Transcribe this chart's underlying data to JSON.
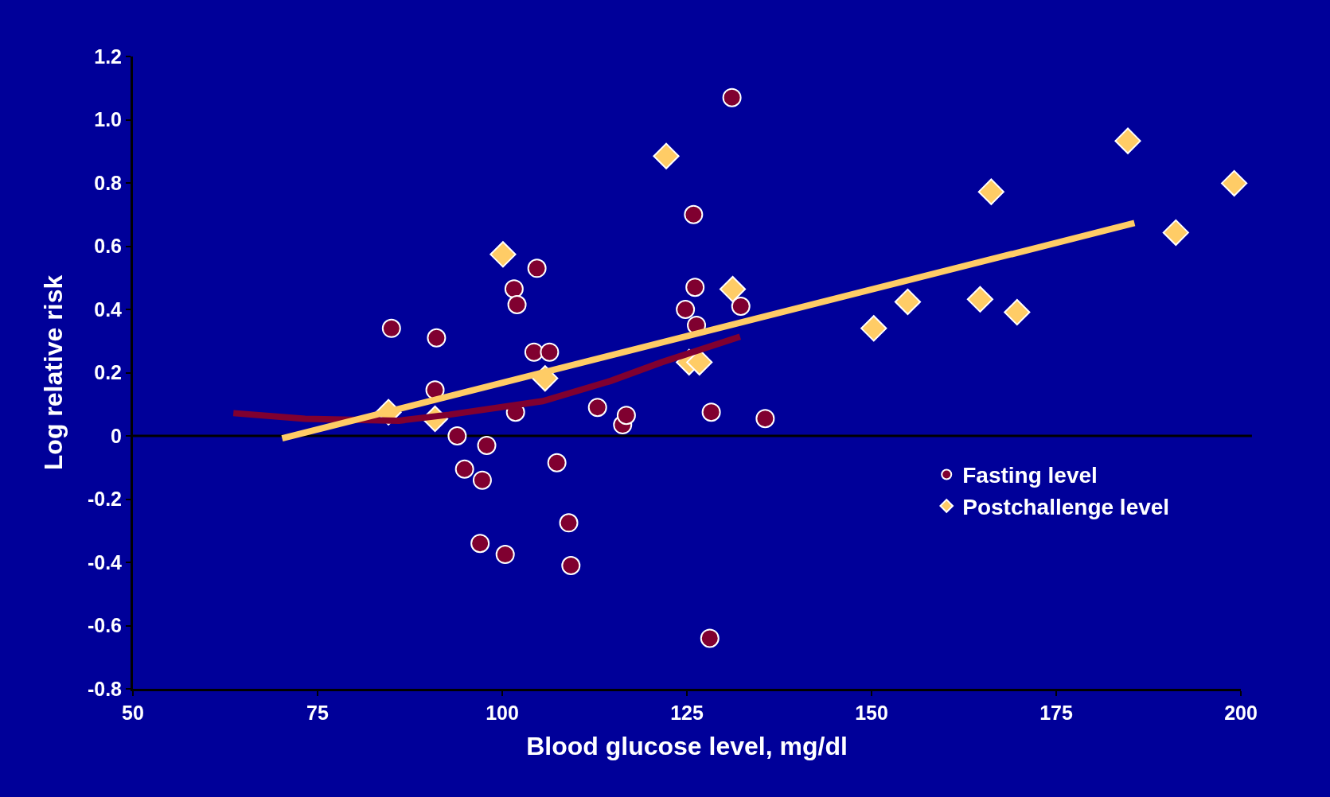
{
  "chart_data": {
    "type": "scatter",
    "xlabel": "Blood glucose level, mg/dl",
    "ylabel": "Log relative risk",
    "xlim": [
      50,
      200
    ],
    "xticks": [
      50,
      75,
      100,
      125,
      150,
      175,
      200
    ],
    "ylim": [
      -0.8,
      1.2
    ],
    "yticks": [
      {
        "value": -0.8,
        "label": "-0.8"
      },
      {
        "value": -0.6,
        "label": "-0.6"
      },
      {
        "value": -0.4,
        "label": "-0.4"
      },
      {
        "value": -0.2,
        "label": "-0.2"
      },
      0,
      {
        "value": 0.2,
        "label": "0.2"
      },
      {
        "value": 0.4,
        "label": "0.4"
      },
      {
        "value": 0.6,
        "label": "0.6"
      },
      {
        "value": 0.8,
        "label": "0.8"
      },
      {
        "value": 1.0,
        "label": "1.0"
      },
      {
        "value": 1.2,
        "label": "1.2"
      }
    ],
    "grid": false,
    "legend": "right",
    "ref_lines": [
      {
        "axis": "y",
        "value": 0,
        "color": "#000000",
        "line_style": "solid"
      }
    ],
    "series": [
      {
        "name": "Fasting level",
        "marker": "circle",
        "color": "#800030",
        "x": [
          85.0,
          91.1,
          90.9,
          93.9,
          97.9,
          94.9,
          97.3,
          97.0,
          100.4,
          101.6,
          102.0,
          104.7,
          104.3,
          106.4,
          101.8,
          107.4,
          109.0,
          109.3,
          112.9,
          116.3,
          116.8,
          125.9,
          126.1,
          124.8,
          126.3,
          131.1,
          132.3,
          128.3,
          128.1,
          135.6
        ],
        "values": [
          0.34,
          0.31,
          0.145,
          0.0,
          -0.03,
          -0.105,
          -0.14,
          -0.34,
          -0.375,
          0.465,
          0.415,
          0.53,
          0.265,
          0.265,
          0.075,
          -0.085,
          -0.275,
          -0.41,
          0.09,
          0.035,
          0.065,
          0.7,
          0.47,
          0.4,
          0.35,
          1.07,
          0.41,
          0.075,
          -0.64,
          0.055
        ]
      },
      {
        "name": "Postchallenge level",
        "marker": "diamond",
        "color": "#ffcc66",
        "x": [
          84.6,
          90.9,
          100.1,
          105.8,
          122.2,
          125.3,
          126.7,
          131.2,
          150.3,
          154.9,
          164.7,
          166.2,
          169.7,
          184.7,
          191.2,
          199.1
        ],
        "values": [
          0.075,
          0.054,
          0.574,
          0.182,
          0.885,
          0.233,
          0.233,
          0.464,
          0.34,
          0.424,
          0.432,
          0.772,
          0.391,
          0.933,
          0.643,
          0.799
        ]
      },
      {
        "type": "line",
        "line_style": "solid",
        "color": "#800030",
        "x": [
          63.6,
          73.3,
          86.0,
          92.8,
          105.5,
          114.7,
          121.6,
          132.2
        ],
        "values": [
          0.072,
          0.054,
          0.048,
          0.067,
          0.11,
          0.174,
          0.233,
          0.314
        ]
      },
      {
        "type": "line",
        "line_style": "solid",
        "color": "#ffcc66",
        "x": [
          70.2,
          185.6
        ],
        "values": [
          -0.008,
          0.673
        ]
      }
    ]
  }
}
